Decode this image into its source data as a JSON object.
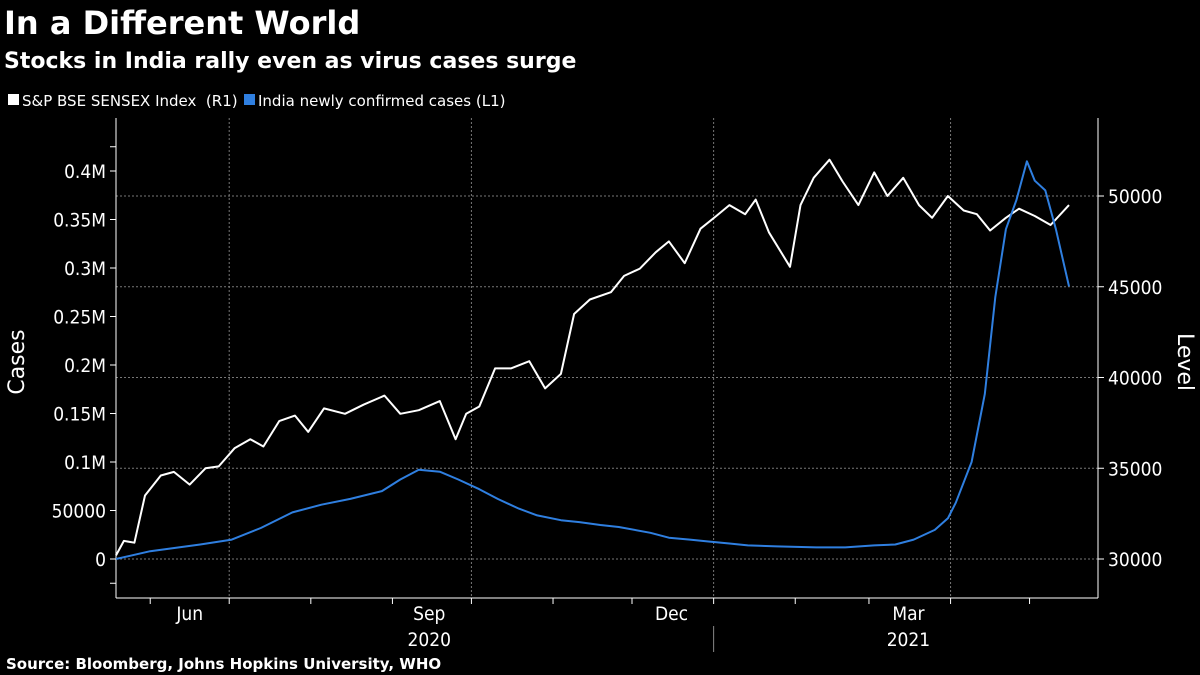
{
  "title": "In a Different World",
  "subtitle": "Stocks in India rally even as virus cases surge",
  "source": "Source: Bloomberg, Johns Hopkins University, WHO",
  "colors": {
    "background": "#000000",
    "sensex": "#ffffff",
    "cases": "#2f7fe0",
    "grid": "#666666"
  },
  "chart_data": {
    "type": "line",
    "title": "In a Different World",
    "subtitle": "Stocks in India rally even as virus cases surge",
    "legend_placement": "top-left",
    "grid": true,
    "xlim": [
      "2020-05-19",
      "2021-05-27"
    ],
    "x_tick_labels": [
      {
        "label": "Jun",
        "date": "2020-06-16"
      },
      {
        "label": "Sep",
        "date": "2020-09-15"
      },
      {
        "label": "Dec",
        "date": "2020-12-16"
      },
      {
        "label": "Mar",
        "date": "2021-03-16"
      }
    ],
    "year_labels": [
      {
        "label": "2020",
        "date": "2020-09-15"
      },
      {
        "label": "2021",
        "date": "2021-03-16"
      }
    ],
    "y_left": {
      "label": "Cases",
      "lim": [
        -20000,
        450000
      ],
      "ticks": [
        0,
        50000,
        100000,
        150000,
        200000,
        250000,
        300000,
        350000,
        400000
      ],
      "tick_labels": [
        "0",
        "50000",
        "0.1M",
        "0.15M",
        "0.2M",
        "0.25M",
        "0.3M",
        "0.35M",
        "0.4M"
      ]
    },
    "y_right": {
      "label": "Level",
      "lim": [
        28000,
        54000
      ],
      "ticks": [
        30000,
        35000,
        40000,
        45000,
        50000
      ],
      "tick_labels": [
        "30000",
        "35000",
        "40000",
        "45000",
        "50000"
      ]
    },
    "series": [
      {
        "name": "S&P BSE SENSEX Index  (R1)",
        "axis": "right",
        "color": "#ffffff",
        "points": [
          [
            "2020-05-19",
            30200
          ],
          [
            "2020-05-22",
            31000
          ],
          [
            "2020-05-26",
            30900
          ],
          [
            "2020-05-30",
            33500
          ],
          [
            "2020-06-05",
            34600
          ],
          [
            "2020-06-10",
            34800
          ],
          [
            "2020-06-16",
            34100
          ],
          [
            "2020-06-22",
            35000
          ],
          [
            "2020-06-27",
            35100
          ],
          [
            "2020-07-03",
            36100
          ],
          [
            "2020-07-09",
            36600
          ],
          [
            "2020-07-14",
            36200
          ],
          [
            "2020-07-20",
            37600
          ],
          [
            "2020-07-26",
            37900
          ],
          [
            "2020-07-31",
            37000
          ],
          [
            "2020-08-06",
            38300
          ],
          [
            "2020-08-14",
            38000
          ],
          [
            "2020-08-21",
            38500
          ],
          [
            "2020-08-29",
            39000
          ],
          [
            "2020-09-04",
            38000
          ],
          [
            "2020-09-11",
            38200
          ],
          [
            "2020-09-19",
            38700
          ],
          [
            "2020-09-25",
            36600
          ],
          [
            "2020-09-29",
            38000
          ],
          [
            "2020-10-04",
            38400
          ],
          [
            "2020-10-10",
            40500
          ],
          [
            "2020-10-16",
            40500
          ],
          [
            "2020-10-23",
            40900
          ],
          [
            "2020-10-29",
            39400
          ],
          [
            "2020-11-04",
            40200
          ],
          [
            "2020-11-09",
            43500
          ],
          [
            "2020-11-15",
            44300
          ],
          [
            "2020-11-23",
            44700
          ],
          [
            "2020-11-28",
            45600
          ],
          [
            "2020-12-04",
            46000
          ],
          [
            "2020-12-10",
            46900
          ],
          [
            "2020-12-15",
            47500
          ],
          [
            "2020-12-21",
            46300
          ],
          [
            "2020-12-27",
            48200
          ],
          [
            "2021-01-02",
            48900
          ],
          [
            "2021-01-07",
            49500
          ],
          [
            "2021-01-13",
            49000
          ],
          [
            "2021-01-17",
            49800
          ],
          [
            "2021-01-22",
            48000
          ],
          [
            "2021-01-30",
            46100
          ],
          [
            "2021-02-03",
            49500
          ],
          [
            "2021-02-08",
            51000
          ],
          [
            "2021-02-14",
            52000
          ],
          [
            "2021-02-19",
            50800
          ],
          [
            "2021-02-25",
            49500
          ],
          [
            "2021-03-03",
            51300
          ],
          [
            "2021-03-08",
            50000
          ],
          [
            "2021-03-14",
            51000
          ],
          [
            "2021-03-20",
            49500
          ],
          [
            "2021-03-25",
            48800
          ],
          [
            "2021-03-31",
            50000
          ],
          [
            "2021-04-06",
            49200
          ],
          [
            "2021-04-11",
            49000
          ],
          [
            "2021-04-16",
            48100
          ],
          [
            "2021-04-22",
            48800
          ],
          [
            "2021-04-27",
            49300
          ],
          [
            "2021-05-03",
            48900
          ],
          [
            "2021-05-09",
            48400
          ],
          [
            "2021-05-16",
            49500
          ]
        ]
      },
      {
        "name": "India newly confirmed cases (L1)",
        "axis": "left",
        "color": "#2f7fe0",
        "points": [
          [
            "2020-05-19",
            0
          ],
          [
            "2020-06-01",
            8000
          ],
          [
            "2020-06-20",
            15000
          ],
          [
            "2020-07-02",
            20000
          ],
          [
            "2020-07-13",
            32000
          ],
          [
            "2020-07-25",
            48000
          ],
          [
            "2020-08-05",
            56000
          ],
          [
            "2020-08-16",
            62000
          ],
          [
            "2020-08-28",
            70000
          ],
          [
            "2020-09-04",
            82000
          ],
          [
            "2020-09-11",
            92000
          ],
          [
            "2020-09-19",
            90000
          ],
          [
            "2020-09-26",
            82000
          ],
          [
            "2020-10-04",
            72000
          ],
          [
            "2020-10-11",
            62000
          ],
          [
            "2020-10-19",
            52000
          ],
          [
            "2020-10-26",
            45000
          ],
          [
            "2020-11-04",
            40000
          ],
          [
            "2020-11-11",
            38000
          ],
          [
            "2020-11-19",
            35000
          ],
          [
            "2020-11-26",
            33000
          ],
          [
            "2020-12-08",
            27000
          ],
          [
            "2020-12-15",
            22000
          ],
          [
            "2020-12-23",
            20000
          ],
          [
            "2020-12-30",
            18000
          ],
          [
            "2021-01-07",
            16000
          ],
          [
            "2021-01-14",
            14000
          ],
          [
            "2021-01-25",
            13000
          ],
          [
            "2021-02-09",
            12000
          ],
          [
            "2021-02-20",
            12000
          ],
          [
            "2021-03-03",
            14000
          ],
          [
            "2021-03-11",
            15000
          ],
          [
            "2021-03-18",
            20000
          ],
          [
            "2021-03-26",
            30000
          ],
          [
            "2021-03-31",
            42000
          ],
          [
            "2021-04-03",
            58000
          ],
          [
            "2021-04-09",
            100000
          ],
          [
            "2021-04-14",
            170000
          ],
          [
            "2021-04-18",
            270000
          ],
          [
            "2021-04-22",
            340000
          ],
          [
            "2021-04-26",
            370000
          ],
          [
            "2021-04-30",
            410000
          ],
          [
            "2021-05-03",
            390000
          ],
          [
            "2021-05-07",
            380000
          ],
          [
            "2021-05-11",
            340000
          ],
          [
            "2021-05-16",
            281000
          ]
        ]
      }
    ]
  }
}
